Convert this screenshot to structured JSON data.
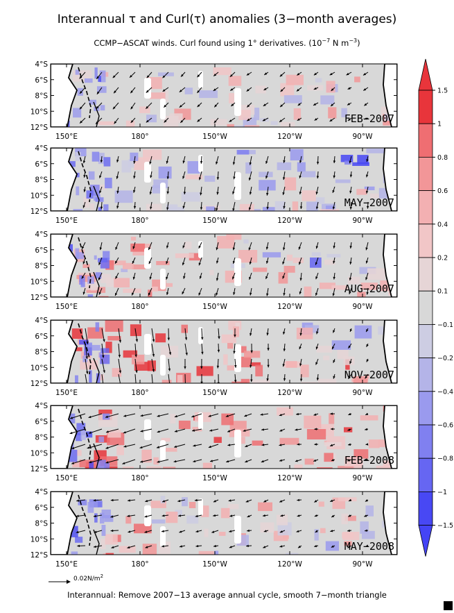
{
  "figure": {
    "title": "Interannual τ and Curl(τ) anomalies (3−month averages)",
    "subtitle_prefix": "CCMP−ASCAT winds. Curl found using 1° derivatives. (10",
    "subtitle_exp1": "−7",
    "subtitle_mid": " N m",
    "subtitle_exp2": "−3",
    "subtitle_suffix": ")",
    "footer": "Interannual: Remove 2007−13 average annual cycle, smooth 7−month triangle",
    "reference_vector_label": "0.02N/m",
    "reference_vector_exp": "2"
  },
  "axes": {
    "lat_labels": [
      "4°S",
      "6°S",
      "8°S",
      "10°S",
      "12°S"
    ],
    "lon_labels": [
      "150°E",
      "180°",
      "150°W",
      "120°W",
      "90°W"
    ]
  },
  "panels": [
    {
      "date_label": "FEB−2007"
    },
    {
      "date_label": "MAY−2007"
    },
    {
      "date_label": "AUG−2007"
    },
    {
      "date_label": "NOV−2007"
    },
    {
      "date_label": "FEB−2008"
    },
    {
      "date_label": "MAY−2008"
    }
  ],
  "colorbar": {
    "labels": [
      "1.5",
      "1",
      "0.8",
      "0.6",
      "0.4",
      "0.2",
      "0.1",
      "−0.1",
      "−0.2",
      "−0.4",
      "−0.6",
      "−0.8",
      "−1",
      "−1.5"
    ],
    "colors": [
      "#e8353b",
      "#ef6e72",
      "#f29698",
      "#f3b0b2",
      "#f1c6c7",
      "#e6d5d6",
      "#d8d8d8",
      "#cdcde3",
      "#b4b4e8",
      "#9a9aee",
      "#8080f0",
      "#6666f2",
      "#4848f4"
    ],
    "top_color": "#e8353b",
    "bottom_color": "#4444f5"
  }
}
